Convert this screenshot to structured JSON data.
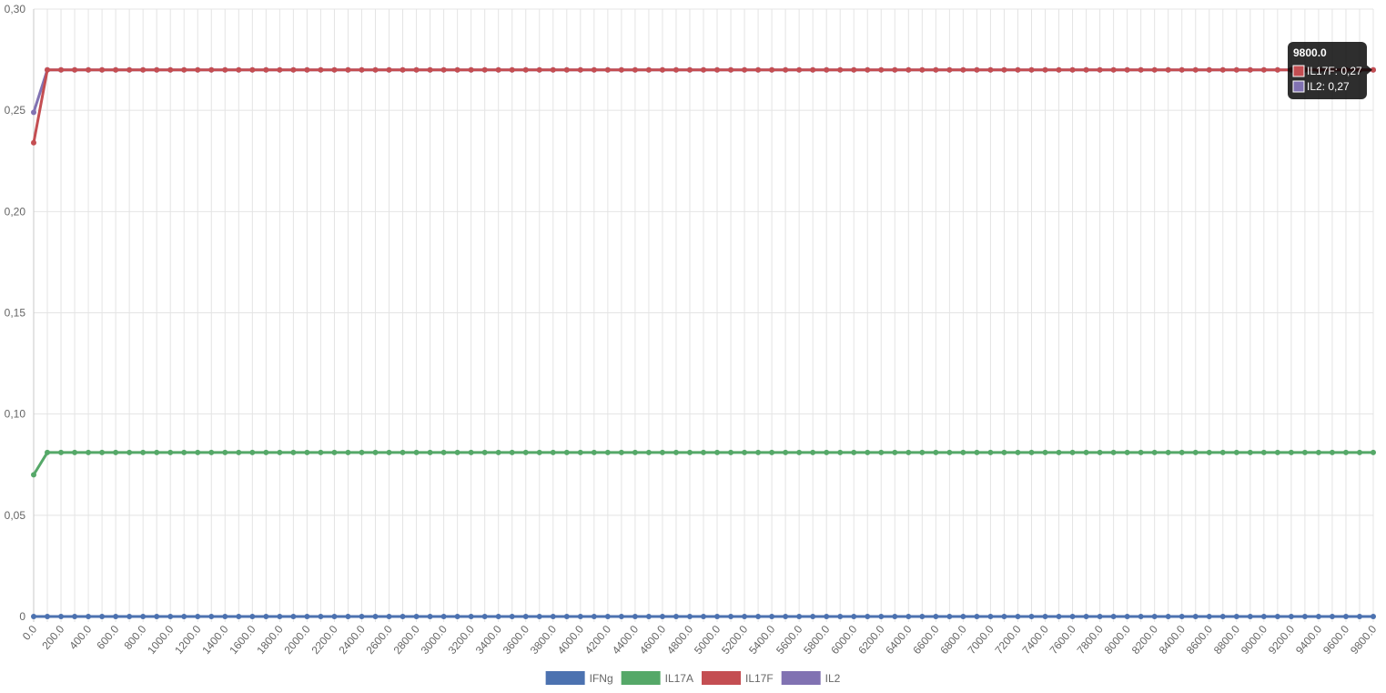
{
  "chart_data": {
    "type": "line",
    "x_start": 0,
    "x_end": 9800,
    "x_step": 100,
    "x_tick_every": 200,
    "ylim": [
      0,
      0.3
    ],
    "y_ticks": [
      "0",
      "0,05",
      "0,10",
      "0,15",
      "0,20",
      "0,25",
      "0,30"
    ],
    "grid": true,
    "legend_position": "bottom",
    "series": [
      {
        "name": "IFNg",
        "color": "#4c72b0",
        "first": 0.0,
        "rest": 0.0
      },
      {
        "name": "IL17A",
        "color": "#55a868",
        "first": 0.07,
        "rest": 0.081
      },
      {
        "name": "IL2",
        "color": "#8172b2",
        "first": 0.249,
        "rest": 0.27
      },
      {
        "name": "IL17F",
        "color": "#c44e52",
        "first": 0.234,
        "rest": 0.27
      }
    ],
    "legend_order": [
      "IFNg",
      "IL17A",
      "IL17F",
      "IL2"
    ],
    "tooltip": {
      "title": "9800.0",
      "items": [
        {
          "label": "IL17F: 0,27",
          "color": "#c44e52"
        },
        {
          "label": "IL2: 0,27",
          "color": "#8172b2"
        }
      ]
    }
  }
}
